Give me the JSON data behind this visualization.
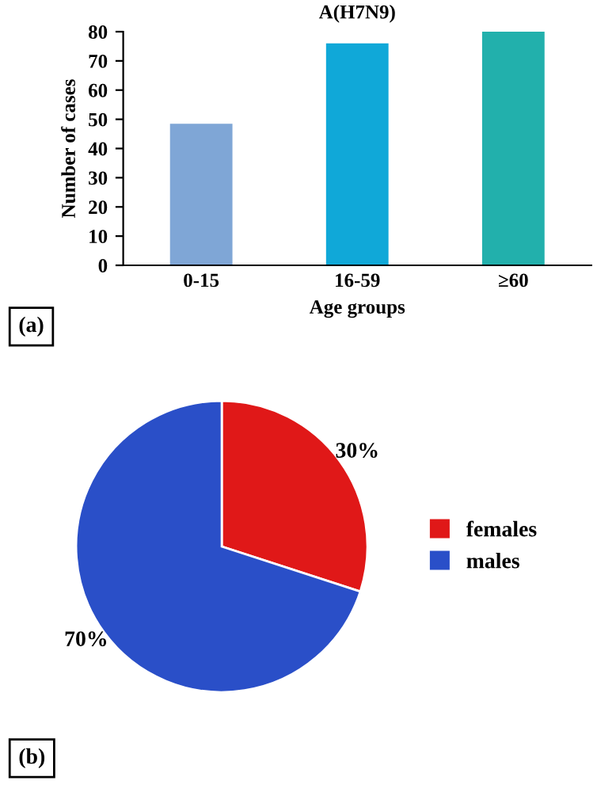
{
  "chart_data": [
    {
      "type": "bar",
      "title": "A(H7N9)",
      "xlabel": "Age groups",
      "ylabel": "Number of cases",
      "categories": [
        "0-15",
        "16-59",
        "≥60"
      ],
      "values": [
        48.5,
        76,
        80
      ],
      "colors": [
        "#7fa6d6",
        "#10a8d8",
        "#22b0ac"
      ],
      "ylim": [
        0,
        80
      ],
      "yticks": [
        0,
        10,
        20,
        30,
        40,
        50,
        60,
        70,
        80
      ],
      "annotations": [
        "(a)"
      ]
    },
    {
      "type": "pie",
      "categories": [
        "females",
        "males"
      ],
      "values": [
        30,
        70
      ],
      "colors": [
        "#e01818",
        "#2a4fc8"
      ],
      "value_labels": [
        "30%",
        "70%"
      ],
      "legend": "right",
      "annotations": [
        "(b)"
      ]
    }
  ]
}
